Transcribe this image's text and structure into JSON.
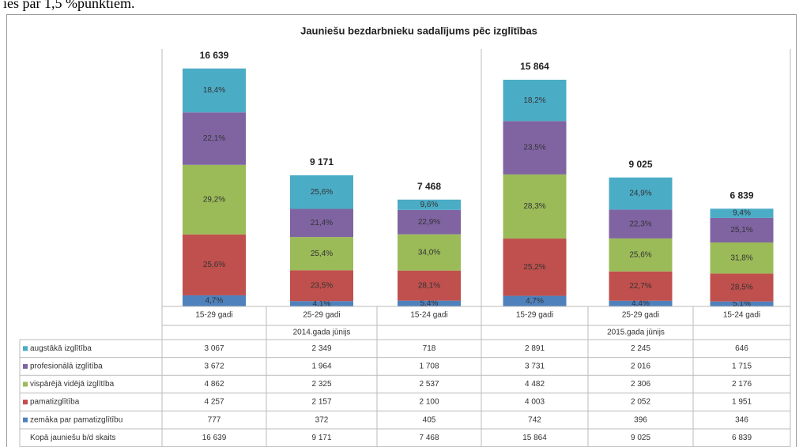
{
  "header_fragment": "ies par 1,5 %punktiem.",
  "chart_data": {
    "type": "stacked_bar",
    "title": "Jauniešu bezdarbnieku sadalījums pēc izglītības",
    "categories": [
      "15-29 gadi",
      "25-29 gadi",
      "15-24 gadi",
      "15-29 gadi",
      "25-29 gadi",
      "15-24 gadi"
    ],
    "groups": [
      "2014.gada jūnijs",
      "2015.gada jūnijs"
    ],
    "ylim": [
      0,
      18000
    ],
    "series": [
      {
        "name": "augstākā izglītība",
        "color": "#4bacc6",
        "values": [
          3067,
          2349,
          718,
          2891,
          2245,
          646
        ],
        "value_labels": [
          "3 067",
          "2 349",
          "718",
          "2 891",
          "2 245",
          "646"
        ],
        "percent_labels": [
          "18,4%",
          "25,6%",
          "9,6%",
          "18,2%",
          "24,9%",
          "9,4%"
        ]
      },
      {
        "name": "profesionālā izglītība",
        "color": "#8064a2",
        "values": [
          3672,
          1964,
          1708,
          3731,
          2016,
          1715
        ],
        "value_labels": [
          "3 672",
          "1 964",
          "1 708",
          "3 731",
          "2 016",
          "1 715"
        ],
        "percent_labels": [
          "22,1%",
          "21,4%",
          "22,9%",
          "23,5%",
          "22,3%",
          "25,1%"
        ]
      },
      {
        "name": "vispārējā vidējā izglītība",
        "color": "#9bbb59",
        "values": [
          4862,
          2325,
          2537,
          4482,
          2306,
          2176
        ],
        "value_labels": [
          "4 862",
          "2 325",
          "2 537",
          "4 482",
          "2 306",
          "2 176"
        ],
        "percent_labels": [
          "29,2%",
          "25,4%",
          "34,0%",
          "28,3%",
          "25,6%",
          "31,8%"
        ]
      },
      {
        "name": "pamatizglītība",
        "color": "#c0504d",
        "values": [
          4257,
          2157,
          2100,
          4003,
          2052,
          1951
        ],
        "value_labels": [
          "4 257",
          "2 157",
          "2 100",
          "4 003",
          "2 052",
          "1 951"
        ],
        "percent_labels": [
          "25,6%",
          "23,5%",
          "28,1%",
          "25,2%",
          "22,7%",
          "28,5%"
        ]
      },
      {
        "name": "zemāka par pamatizglītību",
        "color": "#4f81bd",
        "values": [
          777,
          372,
          405,
          742,
          396,
          346
        ],
        "value_labels": [
          "777",
          "372",
          "405",
          "742",
          "396",
          "346"
        ],
        "percent_labels": [
          "4,7%",
          "4,1%",
          "5,4%",
          "4,7%",
          "4,4%",
          "5,1%"
        ]
      }
    ],
    "totals_name": "Kopā jauniešu b/d skaits",
    "totals": [
      16639,
      9171,
      7468,
      15864,
      9025,
      6839
    ],
    "total_labels": [
      "16 639",
      "9 171",
      "7 468",
      "15 864",
      "9 025",
      "6 839"
    ]
  }
}
